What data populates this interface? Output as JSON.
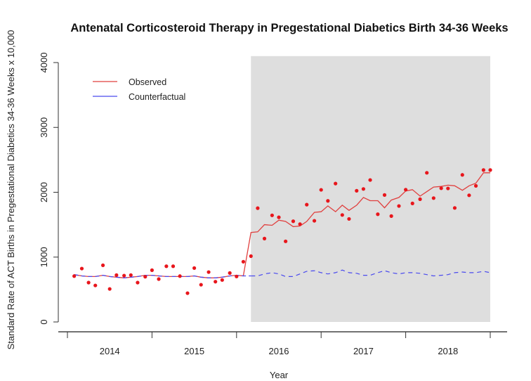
{
  "chart_data": {
    "type": "line",
    "title": "Antenatal Corticosteroid Therapy in Pregestational Diabetics Birth 34-36 Weeks",
    "xlabel": "Year",
    "ylabel": "Standard Rate of ACT Births in Pregestational Diabetics 34-36 Weeks x 10,000",
    "xlim": [
      2014.0,
      2019.0
    ],
    "ylim": [
      0,
      4000
    ],
    "y_ticks": [
      0,
      1000,
      2000,
      3000,
      4000
    ],
    "y_tick_labels": [
      "0",
      "1000",
      "2000",
      "3000",
      "4000"
    ],
    "x_tick_positions": [
      2014,
      2015,
      2016,
      2017,
      2018,
      2019
    ],
    "x_category_labels": [
      {
        "label": "2014",
        "at": 2014.5
      },
      {
        "label": "2015",
        "at": 2015.5
      },
      {
        "label": "2016",
        "at": 2016.5
      },
      {
        "label": "2017",
        "at": 2017.5
      },
      {
        "label": "2018",
        "at": 2018.5
      }
    ],
    "intervention_shading": {
      "x_start": 2016.17,
      "x_end": 2019.0,
      "y_start": 0,
      "y_end": 4100,
      "color": "#dedede"
    },
    "grid": false,
    "legend": {
      "position": "top-left",
      "entries": [
        {
          "label": "Observed",
          "color": "#e0403f",
          "style": "solid"
        },
        {
          "label": "Counterfactual",
          "color": "#4a4aee",
          "style": "solid"
        }
      ]
    },
    "series": [
      {
        "name": "Observed points",
        "kind": "scatter",
        "color": "#e8161c",
        "x": [
          2014.08,
          2014.17,
          2014.25,
          2014.33,
          2014.42,
          2014.5,
          2014.58,
          2014.67,
          2014.75,
          2014.83,
          2014.92,
          2015.0,
          2015.08,
          2015.17,
          2015.25,
          2015.33,
          2015.42,
          2015.5,
          2015.58,
          2015.67,
          2015.75,
          2015.83,
          2015.92,
          2016.0,
          2016.08,
          2016.17,
          2016.25,
          2016.33,
          2016.42,
          2016.5,
          2016.58,
          2016.67,
          2016.75,
          2016.83,
          2016.92,
          2017.0,
          2017.08,
          2017.17,
          2017.25,
          2017.33,
          2017.42,
          2017.5,
          2017.58,
          2017.67,
          2017.75,
          2017.83,
          2017.92,
          2018.0,
          2018.08,
          2018.17,
          2018.25,
          2018.33,
          2018.42,
          2018.5,
          2018.58,
          2018.67,
          2018.75,
          2018.83,
          2018.92,
          2019.0
        ],
        "values": [
          707,
          823,
          607,
          563,
          874,
          509,
          723,
          715,
          723,
          607,
          697,
          798,
          661,
          859,
          859,
          707,
          444,
          831,
          574,
          769,
          621,
          647,
          755,
          701,
          929,
          1015,
          1755,
          1286,
          1644,
          1614,
          1243,
          1553,
          1509,
          1809,
          1560,
          2037,
          1867,
          2134,
          1650,
          1589,
          2023,
          2051,
          2189,
          1661,
          1958,
          1633,
          1788,
          2040,
          1828,
          1893,
          2300,
          1910,
          2062,
          2059,
          1758,
          2268,
          1953,
          2099,
          2343,
          2343
        ]
      },
      {
        "name": "Observed",
        "kind": "line",
        "color": "#e0403f",
        "x": [
          2014.08,
          2014.17,
          2014.25,
          2014.33,
          2014.42,
          2014.5,
          2014.58,
          2014.67,
          2014.75,
          2014.83,
          2014.92,
          2015.0,
          2015.08,
          2015.17,
          2015.25,
          2015.33,
          2015.42,
          2015.5,
          2015.58,
          2015.67,
          2015.75,
          2015.83,
          2015.92,
          2016.0,
          2016.08,
          2016.17,
          2016.25,
          2016.33,
          2016.42,
          2016.5,
          2016.58,
          2016.67,
          2016.75,
          2016.83,
          2016.92,
          2017.0,
          2017.08,
          2017.17,
          2017.25,
          2017.33,
          2017.42,
          2017.5,
          2017.58,
          2017.67,
          2017.75,
          2017.83,
          2017.92,
          2018.0,
          2018.08,
          2018.17,
          2018.25,
          2018.33,
          2018.42,
          2018.5,
          2018.58,
          2018.67,
          2018.75,
          2018.83,
          2018.92,
          2019.0
        ],
        "values": [
          730,
          710,
          700,
          700,
          720,
          700,
          690,
          680,
          690,
          700,
          720,
          720,
          710,
          700,
          700,
          700,
          700,
          710,
          690,
          680,
          680,
          690,
          710,
          720,
          710,
          1380,
          1390,
          1500,
          1490,
          1570,
          1550,
          1470,
          1480,
          1550,
          1690,
          1700,
          1790,
          1700,
          1800,
          1720,
          1800,
          1920,
          1870,
          1870,
          1760,
          1880,
          1920,
          2020,
          2040,
          1940,
          2010,
          2080,
          2090,
          2110,
          2100,
          2030,
          2100,
          2140,
          2300,
          2300
        ]
      },
      {
        "name": "Counterfactual",
        "kind": "line",
        "color": "#4a4aee",
        "x": [
          2014.08,
          2014.17,
          2014.25,
          2014.33,
          2014.42,
          2014.5,
          2014.58,
          2014.67,
          2014.75,
          2014.83,
          2014.92,
          2015.0,
          2015.08,
          2015.17,
          2015.25,
          2015.33,
          2015.42,
          2015.5,
          2015.58,
          2015.67,
          2015.75,
          2015.83,
          2015.92,
          2016.0,
          2016.08,
          2016.17,
          2016.25,
          2016.33,
          2016.42,
          2016.5,
          2016.58,
          2016.67,
          2016.75,
          2016.83,
          2016.92,
          2017.0,
          2017.08,
          2017.17,
          2017.25,
          2017.33,
          2017.42,
          2017.5,
          2017.58,
          2017.67,
          2017.75,
          2017.83,
          2017.92,
          2018.0,
          2018.08,
          2018.17,
          2018.25,
          2018.33,
          2018.42,
          2018.5,
          2018.58,
          2018.67,
          2018.75,
          2018.83,
          2018.92,
          2019.0
        ],
        "values": [
          730,
          710,
          700,
          700,
          720,
          700,
          690,
          680,
          690,
          700,
          720,
          720,
          710,
          700,
          700,
          700,
          700,
          710,
          690,
          680,
          680,
          690,
          710,
          720,
          710,
          710,
          710,
          740,
          760,
          740,
          700,
          700,
          740,
          780,
          790,
          760,
          740,
          760,
          800,
          760,
          750,
          720,
          720,
          760,
          790,
          760,
          740,
          760,
          760,
          750,
          730,
          710,
          720,
          730,
          760,
          770,
          760,
          760,
          780,
          760
        ]
      }
    ]
  }
}
